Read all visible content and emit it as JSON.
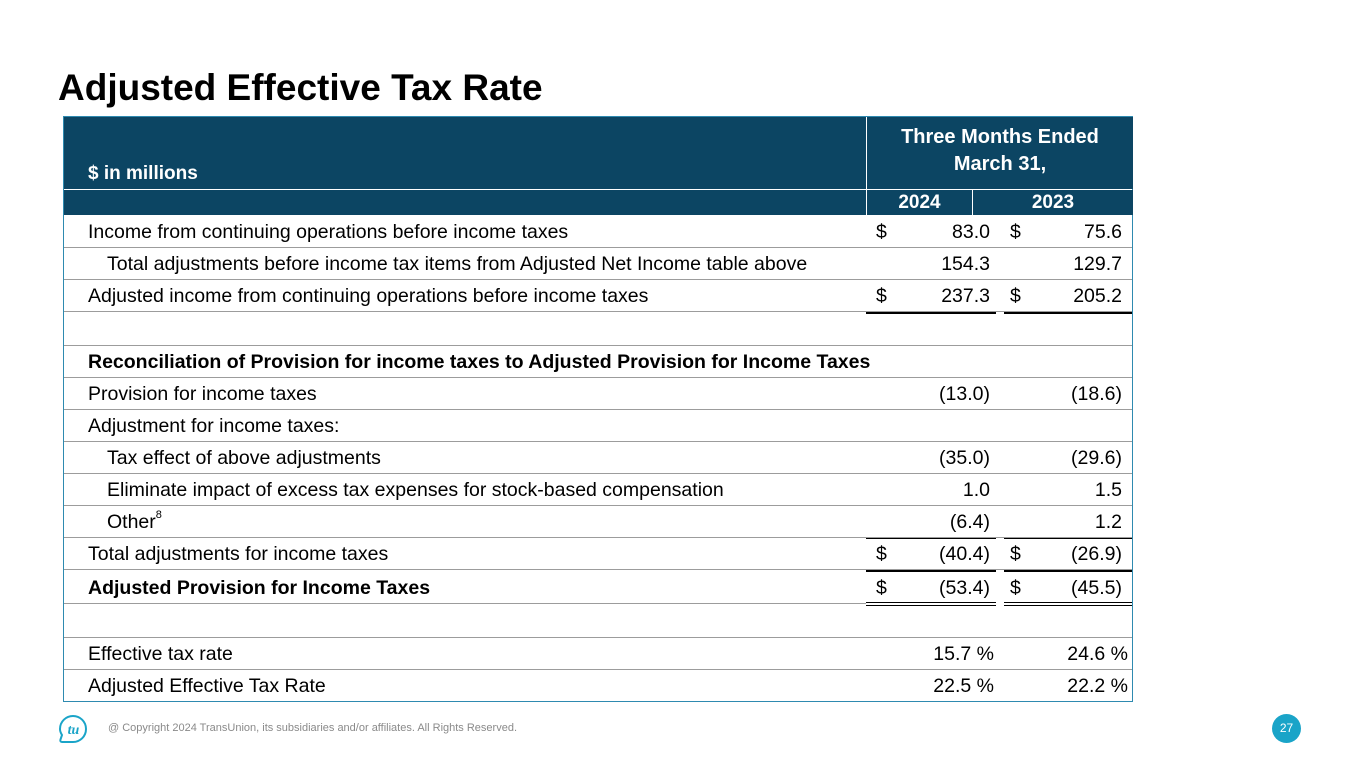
{
  "title": "Adjusted Effective Tax Rate",
  "table": {
    "unit_label": "$ in millions",
    "period_line1": "Three Months Ended",
    "period_line2": "March 31,",
    "year1": "2024",
    "year2": "2023",
    "rows": [
      {
        "label": "Income from continuing operations before income taxes",
        "cur1": "$",
        "v1": "83.0",
        "cur2": "$",
        "v2": "75.6"
      },
      {
        "label": "Total adjustments before income tax items from Adjusted Net Income table above",
        "v1": "154.3",
        "v2": "129.7"
      },
      {
        "label": "Adjusted income from continuing operations before income taxes",
        "cur1": "$",
        "v1": "237.3",
        "cur2": "$",
        "v2": "205.2"
      },
      {
        "label": ""
      },
      {
        "label": "Reconciliation of Provision for income taxes to Adjusted Provision for Income Taxes"
      },
      {
        "label": "Provision for income taxes",
        "v1": "(13.0)",
        "v2": "(18.6)"
      },
      {
        "label": "Adjustment for income taxes:"
      },
      {
        "label": "Tax effect of above adjustments",
        "v1": "(35.0)",
        "v2": "(29.6)"
      },
      {
        "label": "Eliminate impact of excess tax expenses for stock-based compensation",
        "v1": "1.0",
        "v2": "1.5"
      },
      {
        "label": "Other",
        "footnote": "8",
        "v1": "(6.4)",
        "v2": "1.2"
      },
      {
        "label": "Total adjustments for income taxes",
        "cur1": "$",
        "v1": "(40.4)",
        "cur2": "$",
        "v2": "(26.9)"
      },
      {
        "label": "Adjusted Provision for Income Taxes",
        "cur1": "$",
        "v1": "(53.4)",
        "cur2": "$",
        "v2": "(45.5)"
      },
      {
        "label": ""
      },
      {
        "label": "Effective tax rate",
        "v1": "15.7 %",
        "v2": "24.6 %"
      },
      {
        "label": "Adjusted Effective Tax Rate",
        "v1": "22.5 %",
        "v2": "22.2 %"
      }
    ]
  },
  "footer": {
    "logo_text": "tu",
    "copyright": "@ Copyright 2024 TransUnion, its subsidiaries and/or affiliates.  All Rights Reserved.",
    "page_number": "27",
    "accent_color": "#1aa4c8"
  }
}
